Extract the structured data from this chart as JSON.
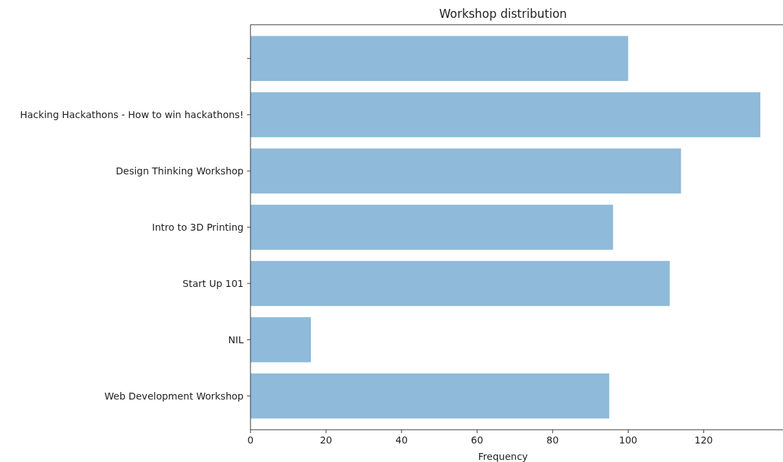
{
  "chart_data": {
    "type": "bar",
    "orientation": "horizontal",
    "title": "Workshop distribution",
    "xlabel": "Frequency",
    "categories": [
      null,
      "Hacking Hackathons - How to win hackathons!",
      "Design Thinking Workshop",
      "Intro to 3D Printing",
      "Start Up 101",
      "NIL",
      "Web Development Workshop"
    ],
    "values": [
      100,
      135,
      114,
      96,
      111,
      16,
      95
    ],
    "color": "#8fbad9",
    "xlim": [
      0,
      141
    ],
    "xticks": [
      0,
      20,
      40,
      60,
      80,
      100,
      120
    ],
    "grid": false
  }
}
